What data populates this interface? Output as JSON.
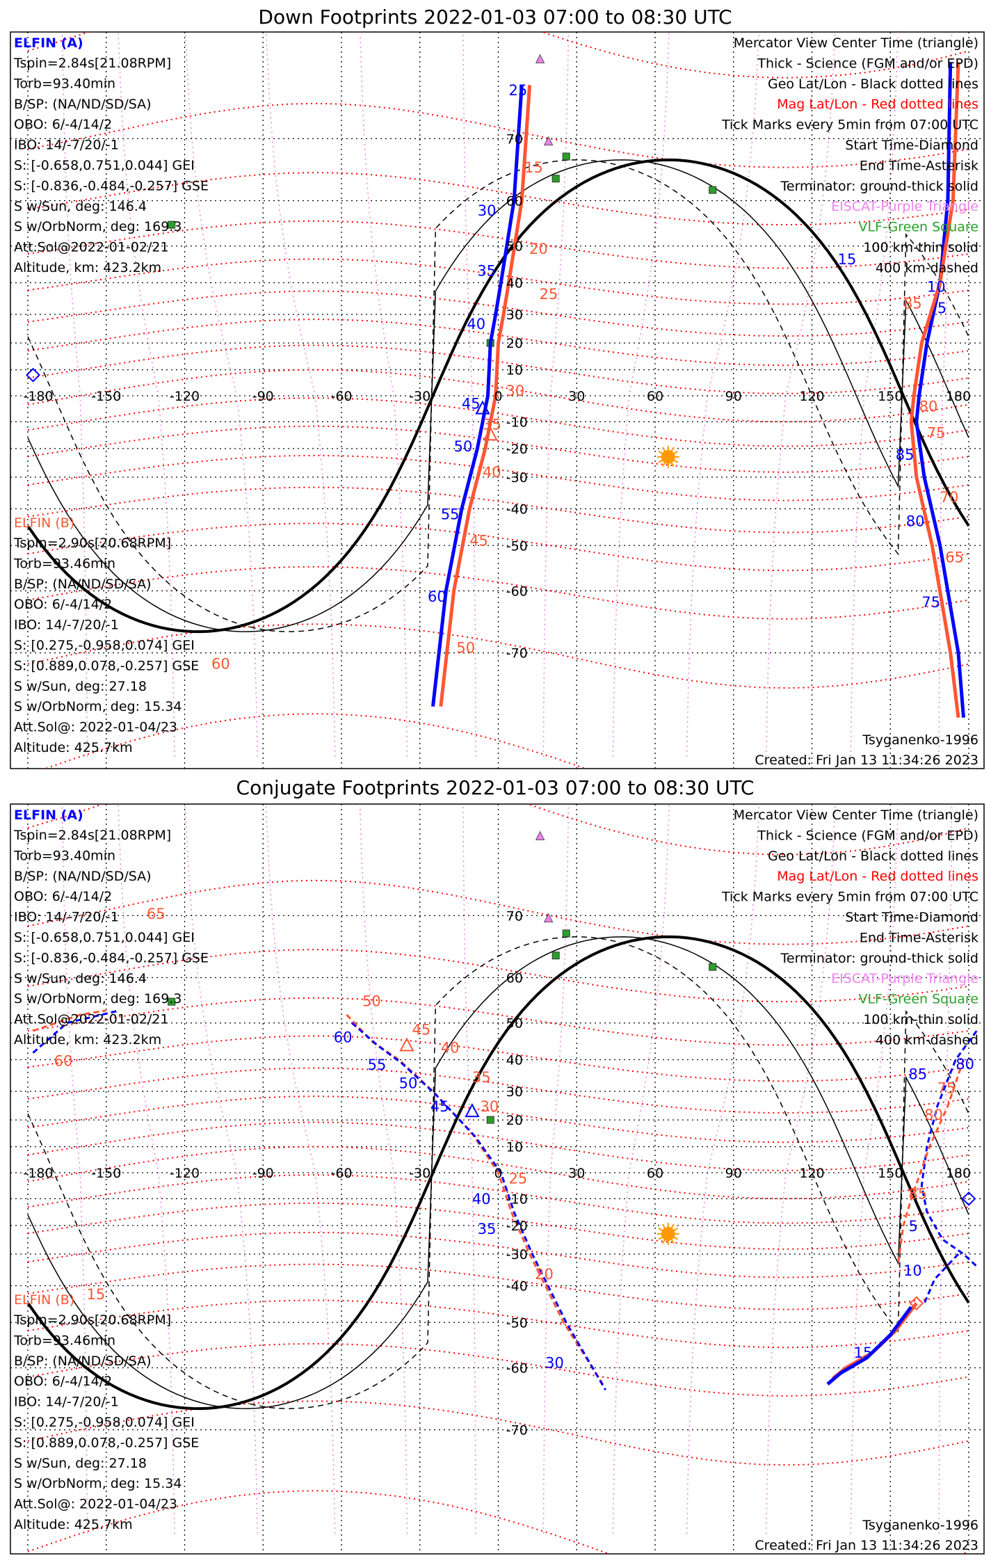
{
  "colors": {
    "probe_a": "#0000ff",
    "probe_b": "#ff5533",
    "mag": "#ff0000",
    "eiscat": "#ee82ee",
    "vlf": "#2aa02a",
    "sun": "#ff9900"
  },
  "panels": [
    {
      "title": "Down Footprints 2022-01-03 07:00 to 08:30 UTC",
      "probe_a": {
        "name": "ELFIN (A)",
        "lines": [
          "Tspin=2.84s[21.08RPM]",
          "Torb=93.40min",
          "B/SP: (NA/ND/SD/SA)",
          "OBO: 6/-4/14/2",
          "IBO: 14/-7/20/-1",
          "S: [-0.658,0.751,0.044] GEI",
          "S: [-0.836,-0.484,-0.257] GSE",
          "S w/Sun, deg: 146.4",
          "S w/OrbNorm, deg: 169.3",
          "Att.Sol@2022-01-02/21",
          "Altitude, km: 423.2km"
        ]
      },
      "probe_b": {
        "name": "ELFIN (B)",
        "lines": [
          "Tspin=2.90s[20.68RPM]",
          "Torb=93.46min",
          "B/SP: (NA/ND/SD/SA)",
          "OBO: 6/-4/14/2",
          "IBO: 14/-7/20/-1",
          "S: [0.275,-0.958,0.074] GEI",
          "S: [0.889,0.078,-0.257] GSE",
          "S w/Sun, deg: 27.18",
          "S w/OrbNorm, deg: 15.34",
          "Att.Sol@: 2022-01-04/23",
          "Altitude: 425.7km"
        ]
      },
      "footer_left": "Tsyganenko-1996",
      "footer_right": "Created: Fri Jan 13 11:34:26 2023",
      "tracks": [
        {
          "probe": "a",
          "style": "solid",
          "pts": [
            [
              76,
              9
            ],
            [
              60,
              6
            ],
            [
              40,
              1
            ],
            [
              30,
              -1
            ],
            [
              20,
              -3
            ],
            [
              0,
              -4
            ],
            [
              -20,
              -8
            ],
            [
              -40,
              -14
            ],
            [
              -60,
              -20
            ],
            [
              -76,
              -25
            ]
          ]
        },
        {
          "probe": "b",
          "style": "solid",
          "pts": [
            [
              76,
              12
            ],
            [
              60,
              9
            ],
            [
              40,
              4
            ],
            [
              30,
              2
            ],
            [
              20,
              0
            ],
            [
              0,
              -1
            ],
            [
              -20,
              -5
            ],
            [
              -40,
              -11
            ],
            [
              -60,
              -17
            ],
            [
              -76,
              -22
            ]
          ]
        },
        {
          "probe": "a",
          "style": "solid",
          "pts": [
            [
              78,
              173
            ],
            [
              60,
              172
            ],
            [
              40,
              169
            ],
            [
              20,
              164
            ],
            [
              0,
              161
            ],
            [
              -10,
              160
            ],
            [
              -30,
              163
            ],
            [
              -50,
              169
            ],
            [
              -70,
              176
            ],
            [
              -77,
              178
            ]
          ]
        },
        {
          "probe": "b",
          "style": "solid",
          "pts": [
            [
              78,
              176
            ],
            [
              60,
              174
            ],
            [
              40,
              169
            ],
            [
              20,
              162
            ],
            [
              0,
              159
            ],
            [
              -10,
              158
            ],
            [
              -30,
              160
            ],
            [
              -50,
              166
            ],
            [
              -70,
              173
            ],
            [
              -77,
              176
            ]
          ]
        }
      ],
      "tick_labels": [
        {
          "p": "a",
          "t": "25",
          "ll": [
            75,
            4
          ]
        },
        {
          "p": "a",
          "t": "30",
          "ll": [
            57,
            -5
          ]
        },
        {
          "p": "a",
          "t": "35",
          "ll": [
            42,
            -8
          ]
        },
        {
          "p": "a",
          "t": "40",
          "ll": [
            25,
            -12
          ]
        },
        {
          "p": "a",
          "t": "45",
          "ll": [
            -5,
            -14
          ]
        },
        {
          "p": "a",
          "t": "50",
          "ll": [
            -21,
            -17
          ]
        },
        {
          "p": "a",
          "t": "55",
          "ll": [
            -43,
            -22
          ]
        },
        {
          "p": "a",
          "t": "60",
          "ll": [
            -62,
            -27
          ]
        },
        {
          "p": "b",
          "t": "15",
          "ll": [
            65,
            10
          ]
        },
        {
          "p": "b",
          "t": "20",
          "ll": [
            48,
            6
          ]
        },
        {
          "p": "b",
          "t": "25",
          "ll": [
            35,
            4
          ]
        },
        {
          "p": "b",
          "t": "30",
          "ll": [
            0,
            0
          ]
        },
        {
          "p": "b",
          "t": "35",
          "ll": [
            -10,
            -3
          ]
        },
        {
          "p": "b",
          "t": "40",
          "ll": [
            -30,
            -6
          ]
        },
        {
          "p": "b",
          "t": "45",
          "ll": [
            -50,
            -11
          ]
        },
        {
          "p": "b",
          "t": "50",
          "ll": [
            -70,
            -16
          ]
        },
        {
          "p": "a",
          "t": "15",
          "ll": [
            65,
            165
          ]
        },
        {
          "p": "a",
          "t": "10",
          "ll": [
            50,
            164
          ]
        },
        {
          "p": "a",
          "t": "5",
          "ll": [
            33,
            168
          ]
        },
        {
          "p": "a",
          "t": "85",
          "ll": [
            -24,
            152
          ]
        },
        {
          "p": "a",
          "t": "80",
          "ll": [
            -45,
            156
          ]
        },
        {
          "p": "a",
          "t": "75",
          "ll": [
            -63,
            162
          ]
        },
        {
          "p": "b",
          "t": "85",
          "ll": [
            32,
            155
          ]
        },
        {
          "p": "b",
          "t": "80",
          "ll": [
            -6,
            161
          ]
        },
        {
          "p": "b",
          "t": "75",
          "ll": [
            -16,
            164
          ]
        },
        {
          "p": "b",
          "t": "70",
          "ll": [
            -38,
            169
          ]
        },
        {
          "p": "b",
          "t": "65",
          "ll": [
            -54,
            171
          ]
        },
        {
          "p": "b",
          "t": "60",
          "ll": [
            -72,
            -180
          ]
        }
      ],
      "center_markers": [
        {
          "p": "a",
          "ll": [
            -5,
            -6
          ]
        },
        {
          "p": "b",
          "ll": [
            -15,
            -3
          ]
        }
      ],
      "start_markers": [
        {
          "p": "a",
          "ll": [
            8,
            -178
          ]
        }
      ]
    },
    {
      "title": "Conjugate Footprints 2022-01-03 07:00 to 08:30 UTC",
      "probe_a": {
        "name": "ELFIN (A)",
        "lines": [
          "Tspin=2.84s[21.08RPM]",
          "Torb=93.40min",
          "B/SP: (NA/ND/SD/SA)",
          "OBO: 6/-4/14/2",
          "IBO: 14/-7/20/-1",
          "S: [-0.658,0.751,0.044] GEI",
          "S: [-0.836,-0.484,-0.257] GSE",
          "S w/Sun, deg: 146.4",
          "S w/OrbNorm, deg: 169.3",
          "Att.Sol@2022-01-02/21",
          "Altitude, km: 423.2km"
        ]
      },
      "probe_b": {
        "name": "ELFIN (B)",
        "lines": [
          "Tspin=2.90s[20.68RPM]",
          "Torb=93.46min",
          "B/SP: (NA/ND/SD/SA)",
          "OBO: 6/-4/14/2",
          "IBO: 14/-7/20/-1",
          "S: [0.275,-0.958,0.074] GEI",
          "S: [0.889,0.078,-0.257] GSE",
          "S w/Sun, deg: 27.18",
          "S w/OrbNorm, deg: 15.34",
          "Att.Sol@: 2022-01-04/23",
          "Altitude: 425.7km"
        ]
      },
      "footer_left": "Tsyganenko-1996",
      "footer_right": "Created: Fri Jan 13 11:34:26 2023",
      "tracks": [
        {
          "probe": "b",
          "style": "dashed",
          "pts": [
            [
              52,
              -58
            ],
            [
              45,
              -48
            ],
            [
              40,
              -38
            ],
            [
              30,
              -25
            ],
            [
              15,
              -10
            ],
            [
              0,
              0
            ],
            [
              -15,
              5
            ],
            [
              -30,
              12
            ],
            [
              -50,
              25
            ],
            [
              -63,
              40
            ]
          ]
        },
        {
          "probe": "a",
          "style": "dashed",
          "pts": [
            [
              50,
              -56
            ],
            [
              44,
              -46
            ],
            [
              39,
              -37
            ],
            [
              29,
              -24
            ],
            [
              14,
              -9
            ],
            [
              0,
              1
            ],
            [
              -15,
              6
            ],
            [
              -30,
              13
            ],
            [
              -50,
              26
            ],
            [
              -64,
              41
            ]
          ]
        },
        {
          "probe": "b",
          "style": "dashed",
          "pts": [
            [
              48,
              -178
            ],
            [
              52,
              -160
            ],
            [
              53,
              -150
            ]
          ]
        },
        {
          "probe": "a",
          "style": "dashed",
          "pts": [
            [
              42,
              -178
            ],
            [
              50,
              -165
            ],
            [
              53,
              -145
            ]
          ]
        },
        {
          "probe": "a",
          "style": "dashed",
          "pts": [
            [
              48,
              183
            ],
            [
              40,
              175
            ],
            [
              25,
              168
            ],
            [
              10,
              164
            ],
            [
              -5,
              162
            ],
            [
              -15,
              164
            ],
            [
              -25,
              170
            ],
            [
              -30,
              178
            ],
            [
              -34,
              183
            ]
          ]
        },
        {
          "probe": "b",
          "style": "dashed",
          "pts": [
            [
              40,
              178
            ],
            [
              25,
              172
            ],
            [
              10,
              165
            ],
            [
              -10,
              158
            ],
            [
              -20,
              155
            ],
            [
              -33,
              153
            ]
          ]
        },
        {
          "probe": "a",
          "style": "dashed",
          "pts": [
            [
              -30,
              176
            ],
            [
              -38,
              167
            ],
            [
              -45,
              163
            ]
          ]
        },
        {
          "probe": "b",
          "style": "solid",
          "pts": [
            [
              -45,
              160
            ],
            [
              -52,
              152
            ],
            [
              -57,
              143
            ],
            [
              -60,
              133
            ],
            [
              -62,
              128
            ]
          ]
        },
        {
          "probe": "a",
          "style": "solid",
          "pts": [
            [
              -46,
              158
            ],
            [
              -53,
              150
            ],
            [
              -58,
              141
            ],
            [
              -61,
              131
            ],
            [
              -63,
              126
            ]
          ]
        }
      ],
      "tick_labels": [
        {
          "p": "a",
          "t": "60",
          "ll": [
            45,
            -63
          ]
        },
        {
          "p": "a",
          "t": "55",
          "ll": [
            37,
            -50
          ]
        },
        {
          "p": "a",
          "t": "50",
          "ll": [
            31,
            -38
          ]
        },
        {
          "p": "a",
          "t": "45",
          "ll": [
            23,
            -26
          ]
        },
        {
          "p": "a",
          "t": "40",
          "ll": [
            -12,
            -10
          ]
        },
        {
          "p": "a",
          "t": "35",
          "ll": [
            -23,
            -5
          ]
        },
        {
          "p": "a",
          "t": "30",
          "ll": [
            -60,
            18
          ]
        },
        {
          "p": "b",
          "t": "50",
          "ll": [
            54,
            -52
          ]
        },
        {
          "p": "b",
          "t": "45",
          "ll": [
            47,
            -33
          ]
        },
        {
          "p": "b",
          "t": "40",
          "ll": [
            42,
            -22
          ]
        },
        {
          "p": "b",
          "t": "35",
          "ll": [
            33,
            -10
          ]
        },
        {
          "p": "b",
          "t": "30",
          "ll": [
            23,
            -4
          ]
        },
        {
          "p": "b",
          "t": "25",
          "ll": [
            -10,
            4
          ]
        },
        {
          "p": "b",
          "t": "20",
          "ll": [
            -38,
            14
          ]
        },
        {
          "p": "b",
          "t": "65",
          "ll": [
            61,
            -155
          ]
        },
        {
          "p": "b",
          "t": "60",
          "ll": [
            56,
            -170
          ]
        },
        {
          "p": "b",
          "t": "15",
          "ll": [
            -57,
            -178
          ]
        },
        {
          "p": "a",
          "t": "80",
          "ll": [
            48,
            175
          ]
        },
        {
          "p": "a",
          "t": "85",
          "ll": [
            34,
            157
          ]
        },
        {
          "p": "a",
          "t": "5",
          "ll": [
            -22,
            157
          ]
        },
        {
          "p": "a",
          "t": "10",
          "ll": [
            -37,
            155
          ]
        },
        {
          "p": "a",
          "t": "15",
          "ll": [
            -58,
            136
          ]
        },
        {
          "p": "b",
          "t": "75",
          "ll": [
            32,
            165
          ]
        },
        {
          "p": "b",
          "t": "80",
          "ll": [
            20,
            163
          ]
        },
        {
          "p": "b",
          "t": "85",
          "ll": [
            -10,
            157
          ]
        }
      ],
      "center_markers": [
        {
          "p": "a",
          "ll": [
            23,
            -10
          ]
        },
        {
          "p": "b",
          "ll": [
            44,
            -35
          ]
        }
      ],
      "start_markers": [
        {
          "p": "a",
          "ll": [
            -10,
            180
          ]
        },
        {
          "p": "b",
          "ll": [
            -45,
            160
          ]
        }
      ]
    }
  ],
  "legend": [
    {
      "t": "Mercator View Center Time (triangle)",
      "c": "#000000"
    },
    {
      "t": "Thick - Science (FGM and/or EPD)",
      "c": "#000000"
    },
    {
      "t": "Geo Lat/Lon - Black dotted lines",
      "c": "#000000"
    },
    {
      "t": "Mag Lat/Lon - Red dotted lines",
      "c": "#ff0000"
    },
    {
      "t": "Tick Marks every 5min from 07:00 UTC",
      "c": "#000000"
    },
    {
      "t": "Start Time-Diamond",
      "c": "#000000"
    },
    {
      "t": "End Time-Asterisk",
      "c": "#000000"
    },
    {
      "t": "Terminator: ground-thick solid",
      "c": "#000000"
    },
    {
      "t": "EISCAT-Purple Triangle",
      "c": "#ee82ee"
    },
    {
      "t": "VLF-Green Square",
      "c": "#2aa02a"
    },
    {
      "t": "100 km-thin solid",
      "c": "#000000"
    },
    {
      "t": "400 km-dashed",
      "c": "#000000"
    }
  ],
  "lon_ticks": [
    "-180",
    "-150",
    "-120",
    "-90",
    "-60",
    "-30",
    "0",
    "30",
    "60",
    "90",
    "120",
    "150",
    "180"
  ],
  "lat_ticks": [
    "70",
    "60",
    "50",
    "40",
    "30",
    "20",
    "10",
    "-10",
    "-20",
    "-30",
    "-40",
    "-50",
    "-60",
    "-70"
  ],
  "subsolar": {
    "lat": -23,
    "lon": 65
  },
  "eiscat": [
    [
      69.6,
      19.2
    ],
    [
      78.2,
      16
    ]
  ],
  "vlf": [
    [
      64,
      22
    ],
    [
      67.5,
      26
    ],
    [
      55,
      -125
    ],
    [
      62,
      82
    ],
    [
      20,
      -3
    ]
  ]
}
